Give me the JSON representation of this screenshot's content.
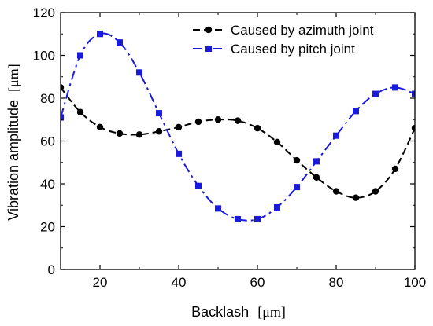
{
  "chart_data": {
    "type": "line",
    "xlabel": "Backlash",
    "xlabel_unit": "[μm]",
    "ylabel": "Vibration amplitude",
    "ylabel_unit": "[μm]",
    "xlim": [
      10,
      100
    ],
    "ylim": [
      0,
      120
    ],
    "xticks": [
      20,
      40,
      60,
      80,
      100
    ],
    "yticks": [
      0,
      20,
      40,
      60,
      80,
      100,
      120
    ],
    "grid": false,
    "legend_position": "top-right",
    "series": [
      {
        "name": "Caused by azimuth joint",
        "color": "#000000",
        "marker": "circle",
        "line_style": "dash",
        "x": [
          10,
          15,
          20,
          25,
          30,
          35,
          40,
          45,
          50,
          55,
          60,
          65,
          70,
          75,
          80,
          85,
          90,
          95,
          100
        ],
        "y": [
          85,
          73.5,
          66.5,
          63.5,
          63,
          64.5,
          66.5,
          69,
          70,
          69.5,
          66,
          59.5,
          51,
          43,
          36.5,
          33.5,
          36.5,
          47,
          66
        ]
      },
      {
        "name": "Caused by pitch joint",
        "color": "#1a1adb",
        "marker": "square",
        "line_style": "dashdot",
        "x": [
          10,
          15,
          20,
          25,
          30,
          35,
          40,
          45,
          50,
          55,
          60,
          65,
          70,
          75,
          80,
          85,
          90,
          95,
          100
        ],
        "y": [
          71,
          100,
          110,
          106,
          92,
          73,
          54,
          39,
          28.5,
          23.5,
          23.5,
          29,
          38.5,
          50.5,
          62.5,
          74,
          82,
          85,
          82
        ]
      }
    ]
  }
}
